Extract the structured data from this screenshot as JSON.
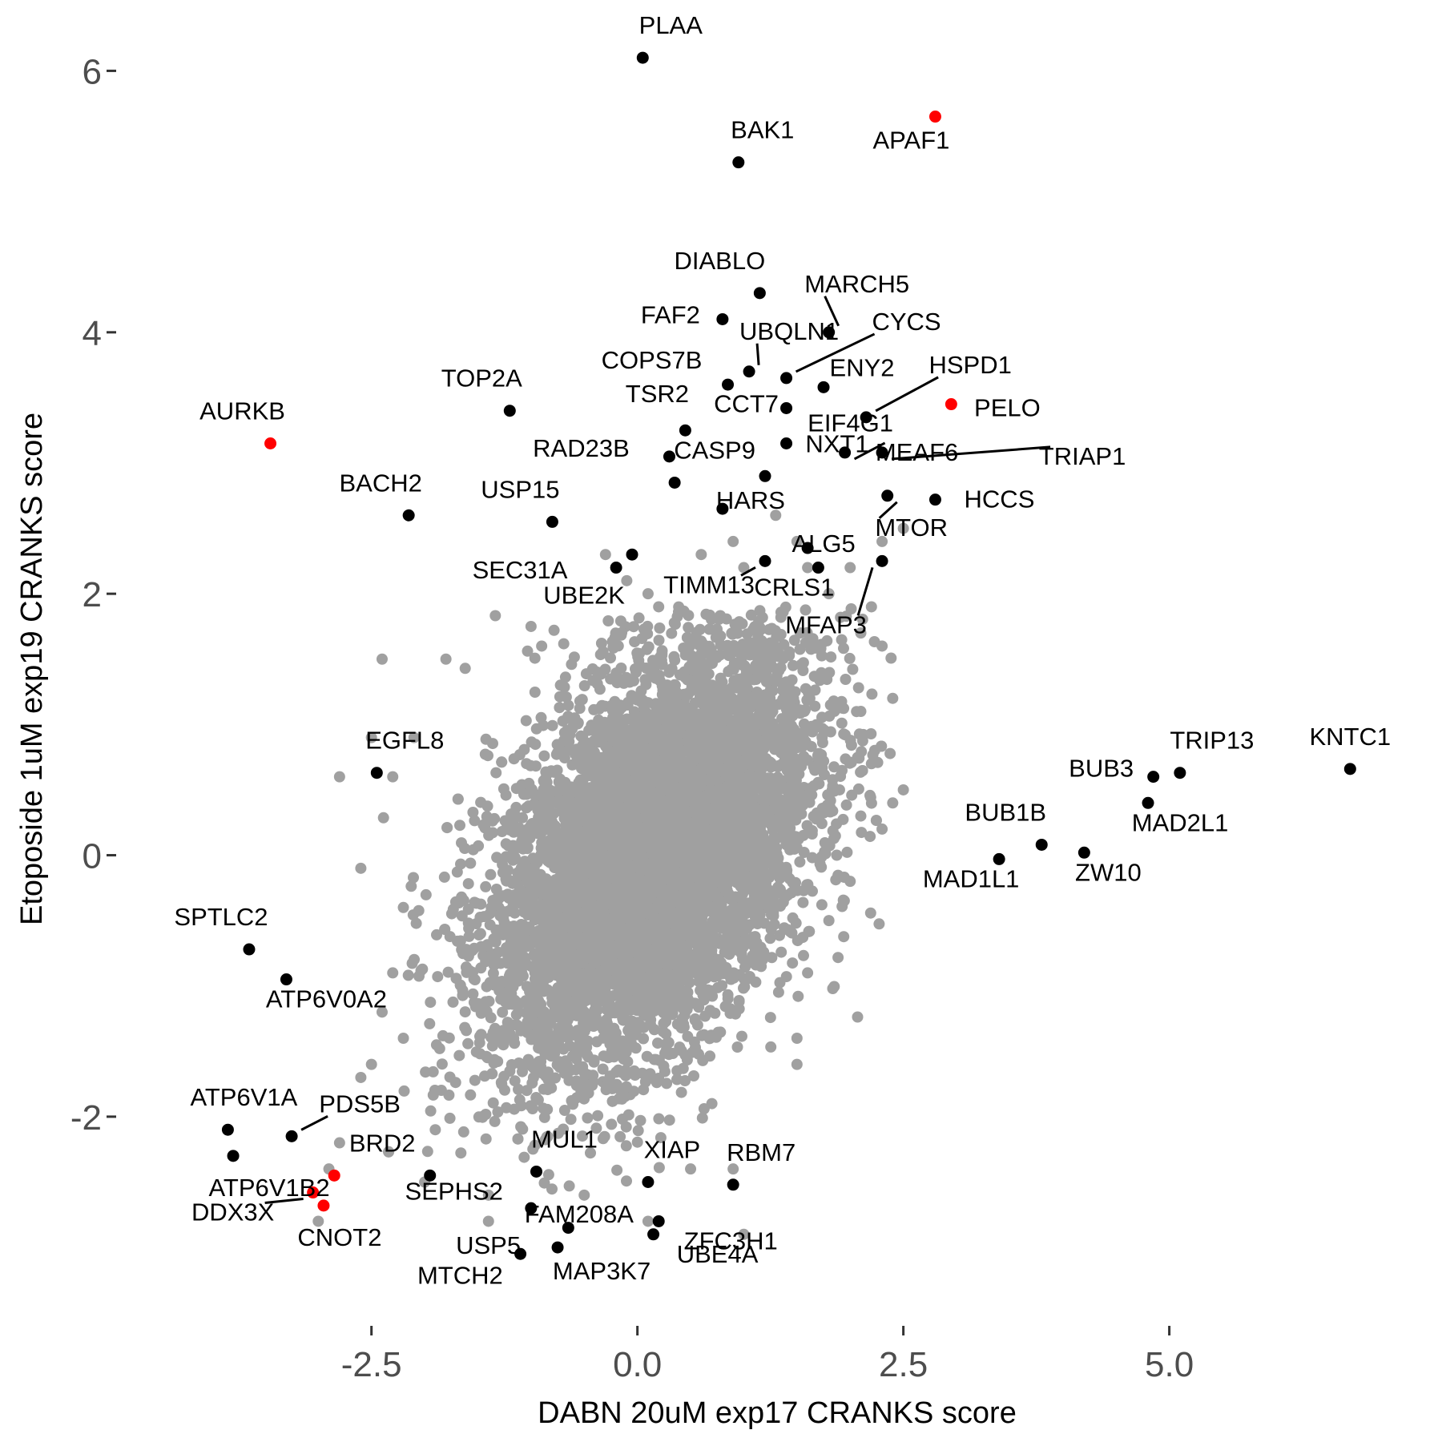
{
  "chart_data": {
    "type": "scatter",
    "xlabel": "DABN 20uM exp17 CRANKS score",
    "ylabel": "Etoposide 1uM exp19 CRANKS score",
    "xlim": [
      -4.9,
      7.3
    ],
    "ylim": [
      -3.6,
      6.45
    ],
    "x_ticks": [
      -2.5,
      0.0,
      2.5,
      5.0
    ],
    "x_tick_labels": [
      "-2.5",
      "0.0",
      "2.5",
      "5.0"
    ],
    "y_ticks": [
      -2,
      0,
      2,
      4,
      6
    ],
    "y_tick_labels": [
      "-2",
      "0",
      "2",
      "4",
      "6"
    ],
    "grid": false,
    "colors": {
      "background_genes": "#a0a0a0",
      "labeled_genes": "#000000",
      "highlighted_genes": "#ff0000",
      "tick_text": "#4d4d4d"
    },
    "background_cloud": {
      "description_free": true,
      "n_points": 7000,
      "center": [
        0.15,
        0.0
      ],
      "sd": [
        0.75,
        0.8
      ],
      "correlation": 0.45
    },
    "background_scatter": [
      [
        -1.0,
        1.75
      ],
      [
        -2.4,
        1.5
      ],
      [
        -2.1,
        0.9
      ],
      [
        -1.8,
        1.5
      ],
      [
        -2.5,
        0.9
      ],
      [
        -2.8,
        0.6
      ],
      [
        -2.3,
        0.6
      ],
      [
        -2.6,
        -0.1
      ],
      [
        -2.2,
        -0.4
      ],
      [
        -2.3,
        -0.9
      ],
      [
        -2.4,
        -1.2
      ],
      [
        -2.2,
        -1.4
      ],
      [
        -2.5,
        -1.6
      ],
      [
        -2.6,
        -1.7
      ],
      [
        -2.8,
        -2.2
      ],
      [
        -2.9,
        -2.4
      ],
      [
        -3.0,
        -2.8
      ],
      [
        -1.9,
        -2.1
      ],
      [
        -2.0,
        -2.5
      ],
      [
        -1.4,
        -2.6
      ],
      [
        -1.4,
        -2.8
      ],
      [
        -1.0,
        -2.7
      ],
      [
        -0.5,
        -2.6
      ],
      [
        0.1,
        -2.8
      ],
      [
        0.5,
        -2.4
      ],
      [
        0.9,
        -2.4
      ],
      [
        1.0,
        -2.9
      ],
      [
        0.7,
        -1.9
      ],
      [
        1.5,
        -1.4
      ],
      [
        1.5,
        -1.6
      ],
      [
        0.6,
        2.3
      ],
      [
        0.9,
        2.4
      ],
      [
        1.0,
        2.2
      ],
      [
        1.3,
        2.6
      ],
      [
        1.5,
        2.4
      ],
      [
        1.6,
        2.2
      ],
      [
        1.8,
        2.0
      ],
      [
        2.0,
        2.2
      ],
      [
        2.1,
        1.7
      ],
      [
        2.3,
        1.6
      ],
      [
        2.2,
        1.9
      ],
      [
        2.4,
        1.2
      ],
      [
        2.1,
        1.1
      ],
      [
        2.2,
        0.7
      ],
      [
        2.5,
        0.5
      ],
      [
        2.4,
        0.4
      ],
      [
        2.3,
        0.2
      ],
      [
        2.1,
        0.3
      ],
      [
        1.9,
        0.5
      ],
      [
        2.0,
        -0.2
      ],
      [
        1.8,
        -0.5
      ],
      [
        1.6,
        -0.9
      ],
      [
        -0.3,
        2.3
      ],
      [
        -0.1,
        2.1
      ],
      [
        0.1,
        2.0
      ],
      [
        0.2,
        1.9
      ],
      [
        -0.9,
        1.6
      ],
      [
        2.5,
        2.5
      ],
      [
        2.3,
        2.4
      ]
    ],
    "labeled_points": [
      {
        "gene": "PLAA",
        "x": 0.05,
        "y": 6.1,
        "color": "black"
      },
      {
        "gene": "BAK1",
        "x": 0.95,
        "y": 5.3,
        "color": "black"
      },
      {
        "gene": "APAF1",
        "x": 2.8,
        "y": 5.65,
        "color": "red"
      },
      {
        "gene": "DIABLO",
        "x": 1.15,
        "y": 4.3,
        "color": "black"
      },
      {
        "gene": "FAF2",
        "x": 0.8,
        "y": 4.1,
        "color": "black"
      },
      {
        "gene": "MARCH5",
        "x": 1.8,
        "y": 4.0,
        "color": "black"
      },
      {
        "gene": "UBQLN1",
        "x": 1.05,
        "y": 3.7,
        "color": "black"
      },
      {
        "gene": "CYCS",
        "x": 1.4,
        "y": 3.65,
        "color": "black"
      },
      {
        "gene": "COPS7B",
        "x": 0.85,
        "y": 3.6,
        "color": "black"
      },
      {
        "gene": "ENY2",
        "x": 1.75,
        "y": 3.58,
        "color": "black"
      },
      {
        "gene": "HSPD1",
        "x": 2.15,
        "y": 3.35,
        "color": "black"
      },
      {
        "gene": "PELO",
        "x": 2.95,
        "y": 3.45,
        "color": "red"
      },
      {
        "gene": "CCT7",
        "x": 1.4,
        "y": 3.42,
        "color": "black"
      },
      {
        "gene": "EIF4G1",
        "x": 1.4,
        "y": 3.15,
        "color": "black"
      },
      {
        "gene": "TSR2",
        "x": 0.45,
        "y": 3.25,
        "color": "black"
      },
      {
        "gene": "TOP2A",
        "x": -1.2,
        "y": 3.4,
        "color": "black"
      },
      {
        "gene": "AURKB",
        "x": -3.45,
        "y": 3.15,
        "color": "red"
      },
      {
        "gene": "RAD23B",
        "x": 0.3,
        "y": 3.05,
        "color": "black"
      },
      {
        "gene": "CASP9",
        "x": 0.35,
        "y": 2.85,
        "color": "black"
      },
      {
        "gene": "MEAF6",
        "x": 1.95,
        "y": 3.08,
        "color": "black"
      },
      {
        "gene": "TRIAP1",
        "x": 2.3,
        "y": 3.08,
        "color": "black"
      },
      {
        "gene": "NXT1",
        "x": 1.2,
        "y": 2.9,
        "color": "black"
      },
      {
        "gene": "HARS",
        "x": 0.8,
        "y": 2.65,
        "color": "black"
      },
      {
        "gene": "HCCS",
        "x": 2.8,
        "y": 2.72,
        "color": "black"
      },
      {
        "gene": "MTOR",
        "x": 2.35,
        "y": 2.75,
        "color": "black"
      },
      {
        "gene": "USP15",
        "x": -0.8,
        "y": 2.55,
        "color": "black"
      },
      {
        "gene": "BACH2",
        "x": -2.15,
        "y": 2.6,
        "color": "black"
      },
      {
        "gene": "SEC31A",
        "x": -0.05,
        "y": 2.3,
        "color": "black"
      },
      {
        "gene": "ALG5",
        "x": 1.6,
        "y": 2.35,
        "color": "black"
      },
      {
        "gene": "UBE2K",
        "x": -0.2,
        "y": 2.2,
        "color": "black"
      },
      {
        "gene": "TIMM13",
        "x": 1.2,
        "y": 2.25,
        "color": "black"
      },
      {
        "gene": "CRLS1",
        "x": 1.7,
        "y": 2.2,
        "color": "black"
      },
      {
        "gene": "MFAP3",
        "x": 2.3,
        "y": 2.25,
        "color": "black"
      },
      {
        "gene": "EGFL8",
        "x": -2.45,
        "y": 0.63,
        "color": "black"
      },
      {
        "gene": "KNTC1",
        "x": 6.7,
        "y": 0.66,
        "color": "black"
      },
      {
        "gene": "TRIP13",
        "x": 5.1,
        "y": 0.63,
        "color": "black"
      },
      {
        "gene": "BUB3",
        "x": 4.85,
        "y": 0.6,
        "color": "black"
      },
      {
        "gene": "MAD2L1",
        "x": 4.8,
        "y": 0.4,
        "color": "black"
      },
      {
        "gene": "BUB1B",
        "x": 3.8,
        "y": 0.08,
        "color": "black"
      },
      {
        "gene": "ZW10",
        "x": 4.2,
        "y": 0.02,
        "color": "black"
      },
      {
        "gene": "MAD1L1",
        "x": 3.4,
        "y": -0.03,
        "color": "black"
      },
      {
        "gene": "SPTLC2",
        "x": -3.65,
        "y": -0.72,
        "color": "black"
      },
      {
        "gene": "ATP6V0A2",
        "x": -3.3,
        "y": -0.95,
        "color": "black"
      },
      {
        "gene": "ATP6V1A",
        "x": -3.85,
        "y": -2.1,
        "color": "black"
      },
      {
        "gene": "ATP6V1B2",
        "x": -3.8,
        "y": -2.3,
        "color": "black"
      },
      {
        "gene": "PDS5B",
        "x": -3.25,
        "y": -2.15,
        "color": "black"
      },
      {
        "gene": "BRD2",
        "x": -2.85,
        "y": -2.45,
        "color": "red"
      },
      {
        "gene": "DDX3X",
        "x": -3.05,
        "y": -2.58,
        "color": "red"
      },
      {
        "gene": "CNOT2",
        "x": -2.95,
        "y": -2.68,
        "color": "red"
      },
      {
        "gene": "SEPHS2",
        "x": -1.95,
        "y": -2.45,
        "color": "black"
      },
      {
        "gene": "MUL1",
        "x": -0.95,
        "y": -2.42,
        "color": "black"
      },
      {
        "gene": "XIAP",
        "x": 0.1,
        "y": -2.5,
        "color": "black"
      },
      {
        "gene": "RBM7",
        "x": 0.9,
        "y": -2.52,
        "color": "black"
      },
      {
        "gene": "FAM208A",
        "x": -1.0,
        "y": -2.7,
        "color": "black"
      },
      {
        "gene": "ZFC3H1",
        "x": 0.2,
        "y": -2.8,
        "color": "black"
      },
      {
        "gene": "UBE4A",
        "x": 0.15,
        "y": -2.9,
        "color": "black"
      },
      {
        "gene": "USP5",
        "x": -1.1,
        "y": -3.05,
        "color": "black"
      },
      {
        "gene": "MAP3K7",
        "x": -0.75,
        "y": -3.0,
        "color": "black"
      },
      {
        "gene": "MTCH2",
        "x": -0.65,
        "y": -2.85,
        "color": "black"
      }
    ]
  }
}
